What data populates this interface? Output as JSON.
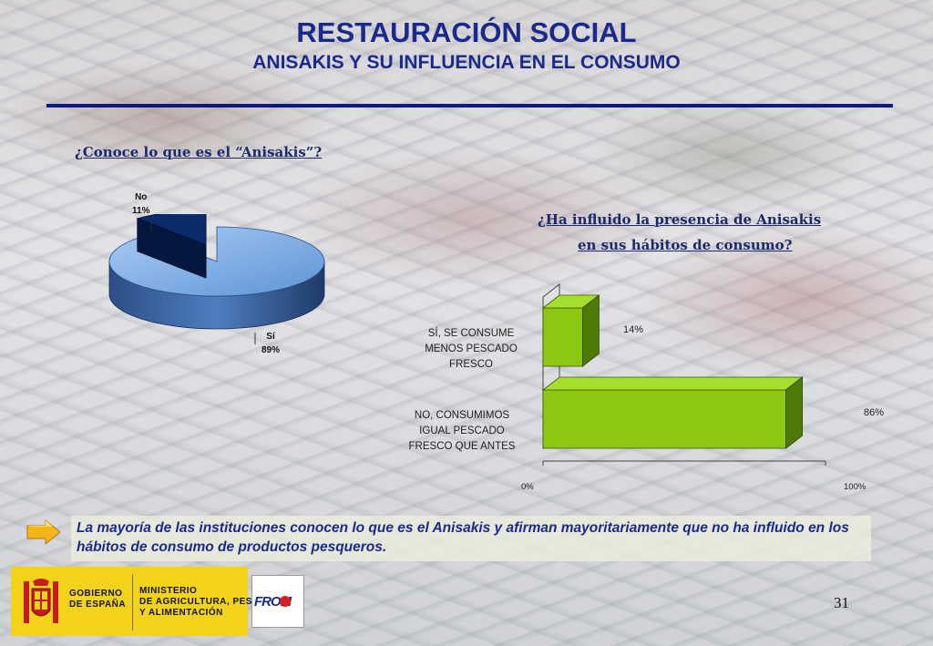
{
  "title": "RESTAURACIÓN SOCIAL",
  "subtitle": "ANISAKIS Y SU INFLUENCIA EN EL CONSUMO",
  "page_number": "31",
  "note": "La mayoría de las instituciones conocen lo que es el Anisakis y afirman mayoritariamente que no ha influido en los hábitos de consumo de productos pesqueros.",
  "footer": {
    "gobierno": [
      "GOBIERNO",
      "DE ESPAÑA"
    ],
    "ministerio": [
      "MINISTERIO",
      "DE AGRICULTURA, PESCA",
      "Y ALIMENTACIÓN"
    ],
    "from_logo": "FROM"
  },
  "colors": {
    "title": "#1a2a8c",
    "bar_green": "#8cc812",
    "pie_yes": "#7fb0e8",
    "pie_no": "#0b2a6a",
    "footer_yellow": "#f3d21b"
  },
  "chart_data": [
    {
      "type": "pie",
      "title": "¿Conoce lo que es el “Anisakis”?",
      "labels": [
        "No",
        "Sí"
      ],
      "percent_labels": [
        "11%",
        "89%"
      ],
      "values": [
        11,
        89
      ]
    },
    {
      "type": "bar",
      "orientation": "horizontal",
      "title": [
        "¿Ha influido la presencia de Anisakis",
        "en sus hábitos de consumo?"
      ],
      "categories": [
        [
          "SÍ, SE CONSUME",
          "MENOS PESCADO",
          "FRESCO"
        ],
        [
          "NO, CONSUMIMOS",
          "IGUAL PESCADO",
          "FRESCO QUE ANTES"
        ]
      ],
      "values": [
        14,
        86
      ],
      "value_labels": [
        "14%",
        "86%"
      ],
      "xlim": [
        0,
        100
      ],
      "tick_labels": [
        "0%",
        "100%"
      ]
    }
  ]
}
